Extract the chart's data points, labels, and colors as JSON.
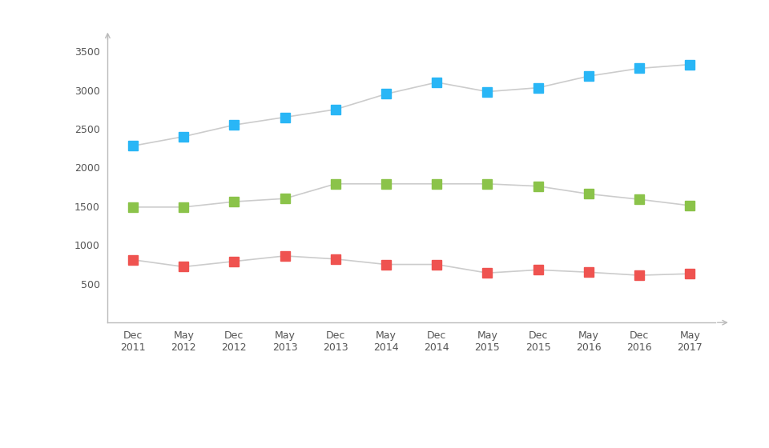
{
  "x_labels": [
    "Dec\n2011",
    "May\n2012",
    "Dec\n2012",
    "May\n2013",
    "Dec\n2013",
    "May\n2014",
    "Dec\n2014",
    "May\n2015",
    "Dec\n2015",
    "May\n2016",
    "Dec\n2016",
    "May\n2017"
  ],
  "senior": [
    2280,
    2400,
    2550,
    2650,
    2750,
    2950,
    3100,
    2980,
    3030,
    3180,
    3280,
    3330
  ],
  "engineer": [
    1490,
    1490,
    1560,
    1600,
    1790,
    1790,
    1790,
    1790,
    1760,
    1660,
    1590,
    1510
  ],
  "junior": [
    810,
    720,
    790,
    860,
    820,
    750,
    750,
    640,
    680,
    650,
    610,
    630
  ],
  "senior_color": "#29b6f6",
  "engineer_color": "#8bc34a",
  "junior_color": "#ef5350",
  "line_color": "#cccccc",
  "background_color": "#ffffff",
  "ylim": [
    0,
    3700
  ],
  "yticks": [
    500,
    1000,
    1500,
    2000,
    2500,
    3000,
    3500
  ],
  "marker": "s",
  "marker_size": 8,
  "line_width": 1.2,
  "axis_color": "#bbbbbb",
  "tick_color": "#555555",
  "label_fontsize": 9,
  "legend_fontsize": 10
}
